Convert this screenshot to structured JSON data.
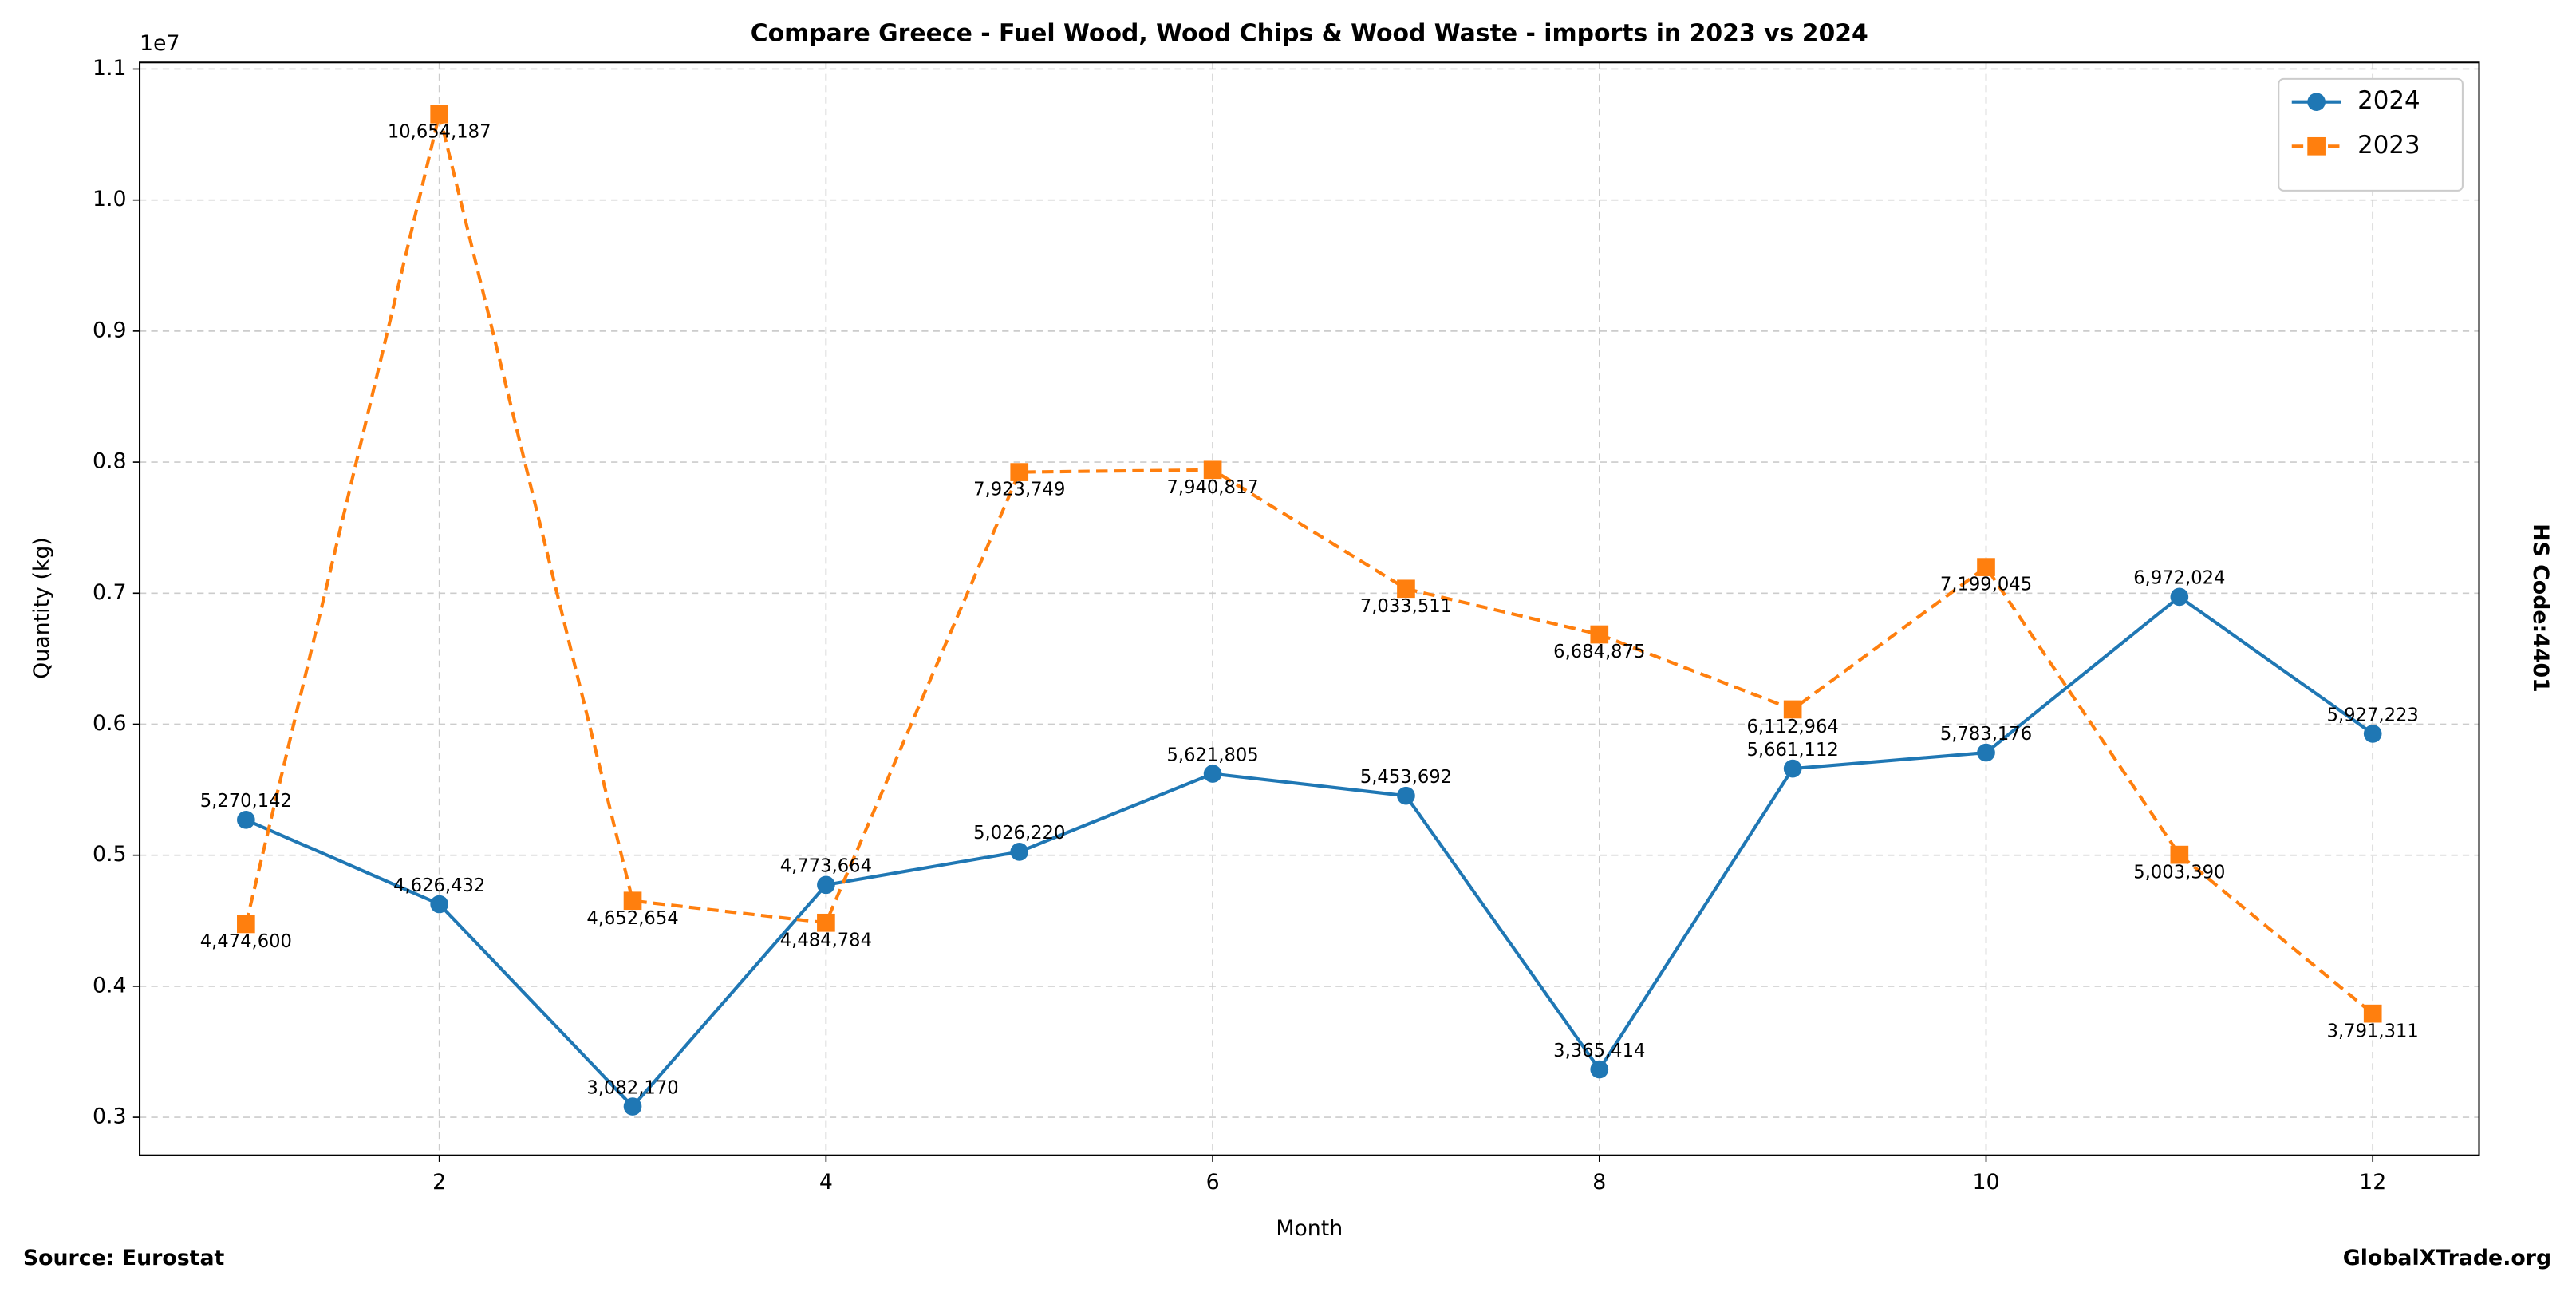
{
  "chart_data": {
    "type": "line",
    "title": "Compare Greece - Fuel Wood, Wood Chips & Wood Waste - imports in 2023 vs 2024",
    "x_label": "Month",
    "y_label": "Quantity (kg)",
    "y_offset_label": "1e7",
    "side_label": "HS Code:4401",
    "source": "Source: Eurostat",
    "brand": "GlobalXTrade.org",
    "x": [
      1,
      2,
      3,
      4,
      5,
      6,
      7,
      8,
      9,
      10,
      11,
      12
    ],
    "xlim": [
      0.45,
      12.55
    ],
    "xticks": [
      2,
      4,
      6,
      8,
      10,
      12
    ],
    "ylim": [
      2710000,
      11050000
    ],
    "yticks": [
      {
        "value": 3000000,
        "label": "0.3"
      },
      {
        "value": 4000000,
        "label": "0.4"
      },
      {
        "value": 5000000,
        "label": "0.5"
      },
      {
        "value": 6000000,
        "label": "0.6"
      },
      {
        "value": 7000000,
        "label": "0.7"
      },
      {
        "value": 8000000,
        "label": "0.8"
      },
      {
        "value": 9000000,
        "label": "0.9"
      },
      {
        "value": 10000000,
        "label": "1.0"
      },
      {
        "value": 11000000,
        "label": "1.1"
      }
    ],
    "grid": true,
    "legend": "upper right",
    "series": [
      {
        "name": "2024",
        "color": "#1f77b4",
        "marker": "circle",
        "linestyle": "solid",
        "label_position": "above",
        "values": [
          5270142,
          4626432,
          3082170,
          4773664,
          5026220,
          5621805,
          5453692,
          3365414,
          5661112,
          5783176,
          6972024,
          5927223
        ],
        "value_labels": [
          "5,270,142",
          "4,626,432",
          "3,082,170",
          "4,773,664",
          "5,026,220",
          "5,621,805",
          "5,453,692",
          "3,365,414",
          "5,661,112",
          "5,783,176",
          "6,972,024",
          "5,927,223"
        ]
      },
      {
        "name": "2023",
        "color": "#ff7f0e",
        "marker": "square",
        "linestyle": "dashed",
        "label_position": "below",
        "values": [
          4474600,
          10654187,
          4652654,
          4484784,
          7923749,
          7940817,
          7033511,
          6684875,
          6112964,
          7199045,
          5003390,
          3791311
        ],
        "value_labels": [
          "4,474,600",
          "10,654,187",
          "4,652,654",
          "4,484,784",
          "7,923,749",
          "7,940,817",
          "7,033,511",
          "6,684,875",
          "6,112,964",
          "7,199,045",
          "5,003,390",
          "3,791,311"
        ]
      }
    ]
  }
}
